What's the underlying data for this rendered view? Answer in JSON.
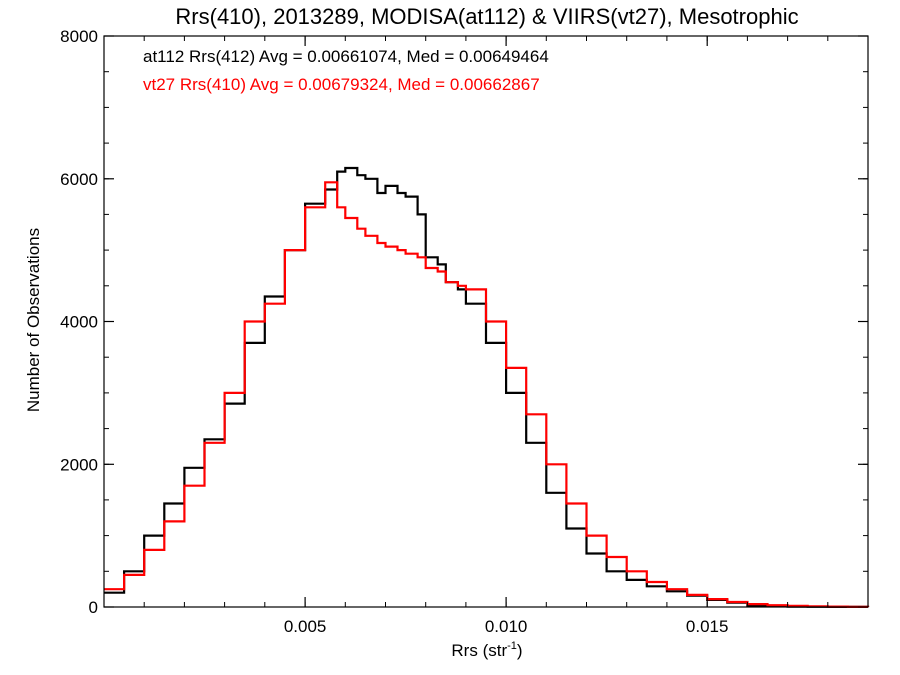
{
  "chart_data": {
    "type": "line",
    "title": "Rrs(410), 2013289, MODISA(at112) & VIIRS(vt27), Mesotrophic",
    "xlabel": "Rrs (str",
    "xlabel_sup": "-1",
    "xlabel_close": ")",
    "ylabel": "Number of Observations",
    "xlim": [
      0.0,
      0.019
    ],
    "ylim": [
      0,
      8000
    ],
    "x_ticks": [
      0.005,
      0.01,
      0.015
    ],
    "x_tick_labels": [
      "0.005",
      "0.010",
      "0.015"
    ],
    "y_ticks": [
      0,
      2000,
      4000,
      6000,
      8000
    ],
    "y_tick_labels": [
      "0",
      "2000",
      "4000",
      "6000",
      "8000"
    ],
    "x_minor_step": 0.001,
    "y_minor_step": 500,
    "grid": false,
    "annotations": [
      {
        "text": "at112 Rrs(412) Avg = 0.00661074, Med = 0.00649464",
        "color": "#000000"
      },
      {
        "text": "vt27 Rrs(410) Avg = 0.00679324, Med = 0.00662867",
        "color": "#ff0000"
      }
    ],
    "series": [
      {
        "name": "at112 Rrs(412)",
        "color": "#000000",
        "x": [
          0.0,
          0.0005,
          0.001,
          0.0015,
          0.002,
          0.0025,
          0.003,
          0.0035,
          0.004,
          0.0045,
          0.005,
          0.0055,
          0.0058,
          0.006,
          0.0063,
          0.0065,
          0.0068,
          0.007,
          0.0073,
          0.0075,
          0.0078,
          0.008,
          0.0083,
          0.0085,
          0.0088,
          0.009,
          0.0095,
          0.01,
          0.0105,
          0.011,
          0.0115,
          0.012,
          0.0125,
          0.013,
          0.0135,
          0.014,
          0.0145,
          0.015,
          0.0155,
          0.016,
          0.0165,
          0.017,
          0.0175,
          0.018,
          0.0185,
          0.019
        ],
        "y": [
          200,
          500,
          1000,
          1450,
          1950,
          2350,
          2850,
          3700,
          4350,
          5000,
          5650,
          5850,
          6100,
          6150,
          6050,
          6000,
          5800,
          5900,
          5800,
          5750,
          5500,
          4900,
          4800,
          4550,
          4450,
          4250,
          3700,
          3000,
          2300,
          1600,
          1100,
          750,
          500,
          380,
          290,
          220,
          160,
          100,
          60,
          20,
          10,
          5,
          3,
          2,
          1,
          0
        ]
      },
      {
        "name": "vt27 Rrs(410)",
        "color": "#ff0000",
        "x": [
          0.0,
          0.0005,
          0.001,
          0.0015,
          0.002,
          0.0025,
          0.003,
          0.0035,
          0.004,
          0.0045,
          0.005,
          0.0055,
          0.0058,
          0.006,
          0.0063,
          0.0065,
          0.0068,
          0.007,
          0.0073,
          0.0075,
          0.0078,
          0.008,
          0.0083,
          0.0085,
          0.0088,
          0.009,
          0.0095,
          0.01,
          0.0105,
          0.011,
          0.0115,
          0.012,
          0.0125,
          0.013,
          0.0135,
          0.014,
          0.0145,
          0.015,
          0.0155,
          0.016,
          0.0165,
          0.017,
          0.0175,
          0.018,
          0.0185,
          0.019
        ],
        "y": [
          250,
          450,
          800,
          1200,
          1700,
          2300,
          3000,
          4000,
          4250,
          5000,
          5600,
          5950,
          5600,
          5450,
          5300,
          5200,
          5100,
          5050,
          5000,
          4950,
          4900,
          4750,
          4700,
          4550,
          4500,
          4450,
          4000,
          3350,
          2700,
          2000,
          1450,
          1000,
          700,
          500,
          350,
          250,
          170,
          110,
          70,
          40,
          25,
          15,
          10,
          5,
          2,
          0
        ]
      }
    ]
  }
}
